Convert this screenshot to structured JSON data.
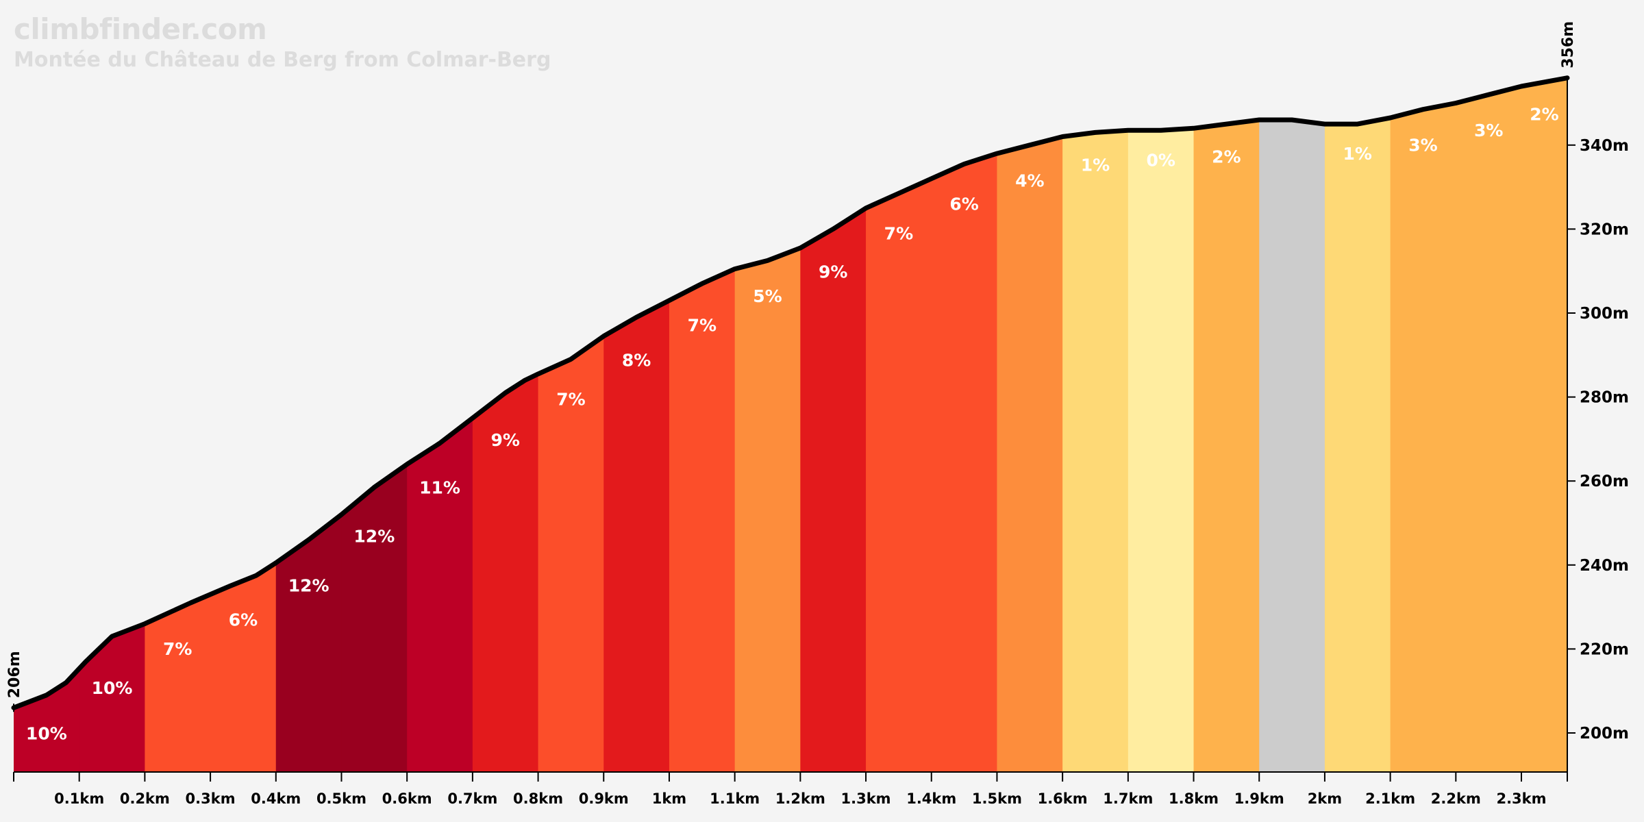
{
  "brand": "climbfinder.com",
  "title": "Montée du Château de Berg from Colmar-Berg",
  "colors": {
    "background": "#f4f4f4",
    "profile_line": "#000000",
    "grade_text": "#ffffff",
    "watermark_text": "#dcdcdc"
  },
  "chart_data": {
    "type": "area",
    "xlabel": "",
    "ylabel": "",
    "xlim": [
      0,
      2.37
    ],
    "ylim": [
      190,
      360
    ],
    "start_label": "206m",
    "end_label": "356m",
    "x_ticks": [
      {
        "value": 0.1,
        "label": "0.1km"
      },
      {
        "value": 0.2,
        "label": "0.2km"
      },
      {
        "value": 0.3,
        "label": "0.3km"
      },
      {
        "value": 0.4,
        "label": "0.4km"
      },
      {
        "value": 0.5,
        "label": "0.5km"
      },
      {
        "value": 0.6,
        "label": "0.6km"
      },
      {
        "value": 0.7,
        "label": "0.7km"
      },
      {
        "value": 0.8,
        "label": "0.8km"
      },
      {
        "value": 0.9,
        "label": "0.9km"
      },
      {
        "value": 1.0,
        "label": "1km"
      },
      {
        "value": 1.1,
        "label": "1.1km"
      },
      {
        "value": 1.2,
        "label": "1.2km"
      },
      {
        "value": 1.3,
        "label": "1.3km"
      },
      {
        "value": 1.4,
        "label": "1.4km"
      },
      {
        "value": 1.5,
        "label": "1.5km"
      },
      {
        "value": 1.6,
        "label": "1.6km"
      },
      {
        "value": 1.7,
        "label": "1.7km"
      },
      {
        "value": 1.8,
        "label": "1.8km"
      },
      {
        "value": 1.9,
        "label": "1.9km"
      },
      {
        "value": 2.0,
        "label": "2km"
      },
      {
        "value": 2.1,
        "label": "2.1km"
      },
      {
        "value": 2.2,
        "label": "2.2km"
      },
      {
        "value": 2.3,
        "label": "2.3km"
      }
    ],
    "y_ticks": [
      {
        "value": 200,
        "label": "200m"
      },
      {
        "value": 220,
        "label": "220m"
      },
      {
        "value": 240,
        "label": "240m"
      },
      {
        "value": 260,
        "label": "260m"
      },
      {
        "value": 280,
        "label": "280m"
      },
      {
        "value": 300,
        "label": "300m"
      },
      {
        "value": 320,
        "label": "320m"
      },
      {
        "value": 340,
        "label": "340m"
      }
    ],
    "profile": [
      [
        0.0,
        206
      ],
      [
        0.05,
        209
      ],
      [
        0.08,
        212
      ],
      [
        0.11,
        217
      ],
      [
        0.15,
        223
      ],
      [
        0.2,
        226
      ],
      [
        0.27,
        231
      ],
      [
        0.33,
        235
      ],
      [
        0.37,
        237.5
      ],
      [
        0.4,
        240.5
      ],
      [
        0.45,
        246
      ],
      [
        0.5,
        252
      ],
      [
        0.55,
        258.5
      ],
      [
        0.6,
        264
      ],
      [
        0.65,
        269
      ],
      [
        0.7,
        275
      ],
      [
        0.75,
        281
      ],
      [
        0.78,
        284
      ],
      [
        0.8,
        285.5
      ],
      [
        0.85,
        289
      ],
      [
        0.9,
        294.5
      ],
      [
        0.95,
        299
      ],
      [
        1.0,
        303
      ],
      [
        1.05,
        307
      ],
      [
        1.1,
        310.5
      ],
      [
        1.15,
        312.5
      ],
      [
        1.2,
        315.5
      ],
      [
        1.25,
        320
      ],
      [
        1.3,
        325
      ],
      [
        1.35,
        328.5
      ],
      [
        1.4,
        332
      ],
      [
        1.45,
        335.5
      ],
      [
        1.5,
        338
      ],
      [
        1.55,
        340
      ],
      [
        1.6,
        342
      ],
      [
        1.65,
        343
      ],
      [
        1.7,
        343.5
      ],
      [
        1.75,
        343.5
      ],
      [
        1.8,
        344
      ],
      [
        1.85,
        345
      ],
      [
        1.9,
        346
      ],
      [
        1.95,
        346
      ],
      [
        2.0,
        345
      ],
      [
        2.05,
        345
      ],
      [
        2.1,
        346.5
      ],
      [
        2.15,
        348.5
      ],
      [
        2.2,
        350
      ],
      [
        2.25,
        352
      ],
      [
        2.3,
        354
      ],
      [
        2.37,
        356
      ]
    ],
    "segments": [
      {
        "start": 0.0,
        "end": 0.1,
        "grade": "10%",
        "color": "#bd0026"
      },
      {
        "start": 0.1,
        "end": 0.2,
        "grade": "10%",
        "color": "#bd0026"
      },
      {
        "start": 0.2,
        "end": 0.3,
        "grade": "7%",
        "color": "#fc4e2a"
      },
      {
        "start": 0.3,
        "end": 0.4,
        "grade": "6%",
        "color": "#fc4e2a"
      },
      {
        "start": 0.4,
        "end": 0.5,
        "grade": "12%",
        "color": "#99001f"
      },
      {
        "start": 0.5,
        "end": 0.6,
        "grade": "12%",
        "color": "#99001f"
      },
      {
        "start": 0.6,
        "end": 0.7,
        "grade": "11%",
        "color": "#bd0026"
      },
      {
        "start": 0.7,
        "end": 0.8,
        "grade": "9%",
        "color": "#e31a1c"
      },
      {
        "start": 0.8,
        "end": 0.9,
        "grade": "7%",
        "color": "#fc4e2a"
      },
      {
        "start": 0.9,
        "end": 1.0,
        "grade": "8%",
        "color": "#e31a1c"
      },
      {
        "start": 1.0,
        "end": 1.1,
        "grade": "7%",
        "color": "#fc4e2a"
      },
      {
        "start": 1.1,
        "end": 1.2,
        "grade": "5%",
        "color": "#fd8d3c"
      },
      {
        "start": 1.2,
        "end": 1.3,
        "grade": "9%",
        "color": "#e31a1c"
      },
      {
        "start": 1.3,
        "end": 1.4,
        "grade": "7%",
        "color": "#fc4e2a"
      },
      {
        "start": 1.4,
        "end": 1.5,
        "grade": "6%",
        "color": "#fc4e2a"
      },
      {
        "start": 1.5,
        "end": 1.6,
        "grade": "4%",
        "color": "#fd8d3c"
      },
      {
        "start": 1.6,
        "end": 1.7,
        "grade": "1%",
        "color": "#fed976"
      },
      {
        "start": 1.7,
        "end": 1.8,
        "grade": "0%",
        "color": "#ffeda0"
      },
      {
        "start": 1.8,
        "end": 1.9,
        "grade": "2%",
        "color": "#feb24c"
      },
      {
        "start": 1.9,
        "end": 2.0,
        "grade": "",
        "color": "#cccccc"
      },
      {
        "start": 2.0,
        "end": 2.1,
        "grade": "1%",
        "color": "#fed976"
      },
      {
        "start": 2.1,
        "end": 2.2,
        "grade": "3%",
        "color": "#feb24c"
      },
      {
        "start": 2.2,
        "end": 2.3,
        "grade": "3%",
        "color": "#feb24c"
      },
      {
        "start": 2.3,
        "end": 2.37,
        "grade": "2%",
        "color": "#feb24c"
      }
    ]
  }
}
